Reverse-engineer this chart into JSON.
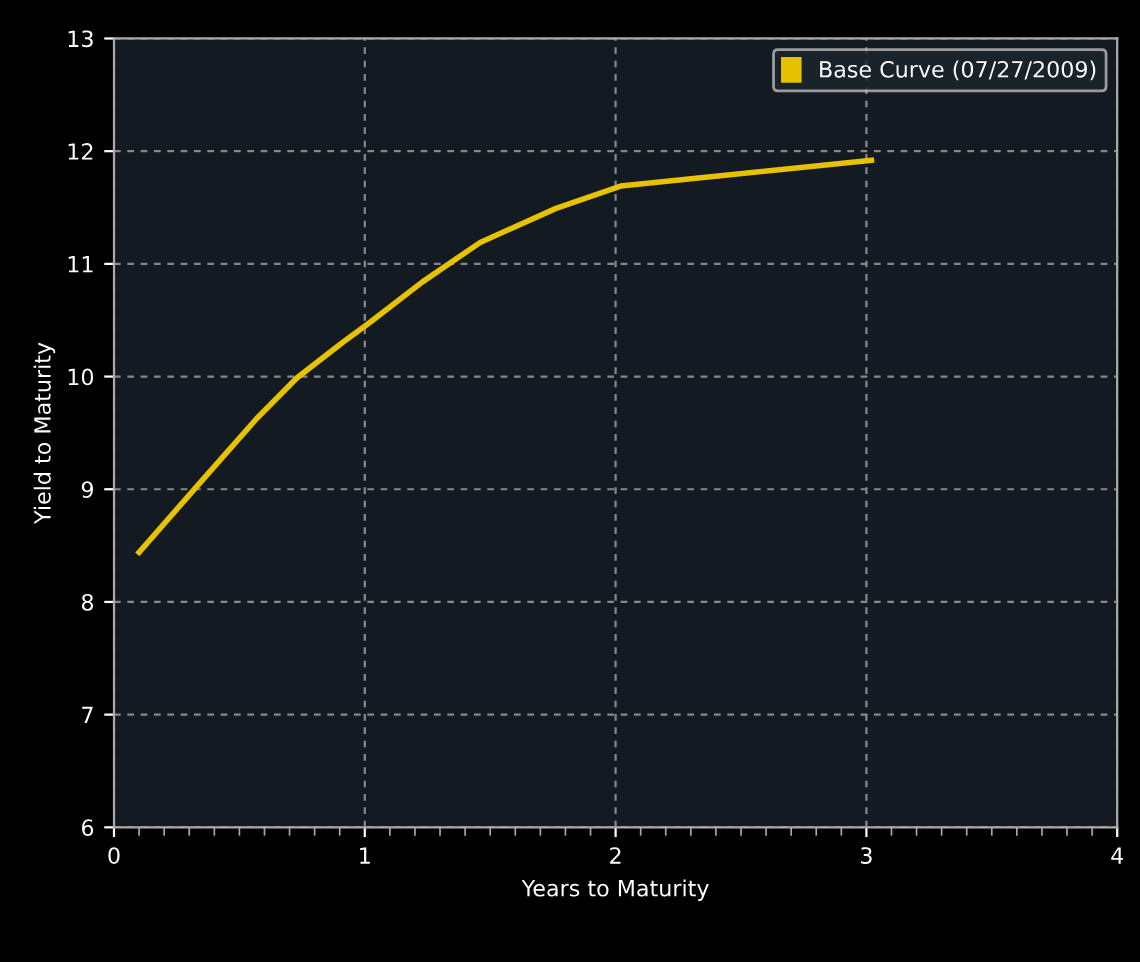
{
  "chart_data": {
    "type": "line",
    "xlabel": "Years to Maturity",
    "ylabel": "Yield to Maturity",
    "xlim": [
      0,
      4
    ],
    "xticks": [
      0,
      1,
      2,
      3,
      4
    ],
    "ylim": [
      6,
      13
    ],
    "yticks": [
      6,
      7,
      8,
      9,
      10,
      11,
      12,
      13
    ],
    "grid": true,
    "legend": "top right",
    "marker": "none",
    "line_style": "solid",
    "series": [
      {
        "name": "Base Curve (07/27/2009)",
        "color": "#e6c200",
        "x": [
          0.1,
          0.34,
          0.57,
          0.73,
          0.91,
          1.02,
          1.23,
          1.46,
          1.76,
          2.02,
          3.02
        ],
        "values": [
          8.44,
          9.05,
          9.63,
          9.99,
          10.3,
          10.48,
          10.84,
          11.19,
          11.49,
          11.69,
          11.92
        ]
      }
    ]
  }
}
